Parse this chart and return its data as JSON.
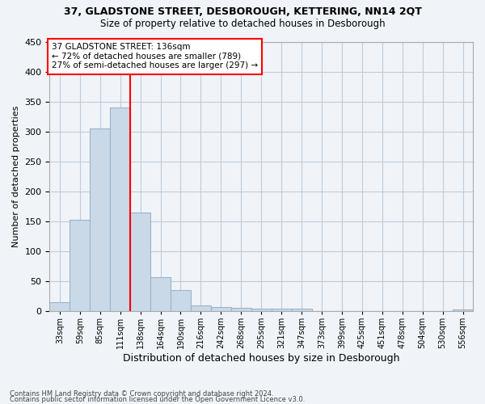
{
  "title1": "37, GLADSTONE STREET, DESBOROUGH, KETTERING, NN14 2QT",
  "title2": "Size of property relative to detached houses in Desborough",
  "xlabel": "Distribution of detached houses by size in Desborough",
  "ylabel": "Number of detached properties",
  "footnote1": "Contains HM Land Registry data © Crown copyright and database right 2024.",
  "footnote2": "Contains public sector information licensed under the Open Government Licence v3.0.",
  "annotation_line1": "37 GLADSTONE STREET: 136sqm",
  "annotation_line2": "← 72% of detached houses are smaller (789)",
  "annotation_line3": "27% of semi-detached houses are larger (297) →",
  "bar_color": "#c9d9e8",
  "bar_edge_color": "#9ab4cc",
  "vline_color": "red",
  "categories": [
    "33sqm",
    "59sqm",
    "85sqm",
    "111sqm",
    "138sqm",
    "164sqm",
    "190sqm",
    "216sqm",
    "242sqm",
    "268sqm",
    "295sqm",
    "321sqm",
    "347sqm",
    "373sqm",
    "399sqm",
    "425sqm",
    "451sqm",
    "478sqm",
    "504sqm",
    "530sqm",
    "556sqm"
  ],
  "values": [
    15,
    152,
    305,
    340,
    165,
    57,
    35,
    10,
    7,
    5,
    4,
    4,
    4,
    0,
    0,
    0,
    0,
    0,
    0,
    0,
    3
  ],
  "vline_index": 4,
  "ylim": [
    0,
    450
  ],
  "yticks": [
    0,
    50,
    100,
    150,
    200,
    250,
    300,
    350,
    400,
    450
  ],
  "background_color": "#f0f4f8",
  "grid_color": "#c0ccd8",
  "ann_box_color": "white",
  "ann_edge_color": "red"
}
